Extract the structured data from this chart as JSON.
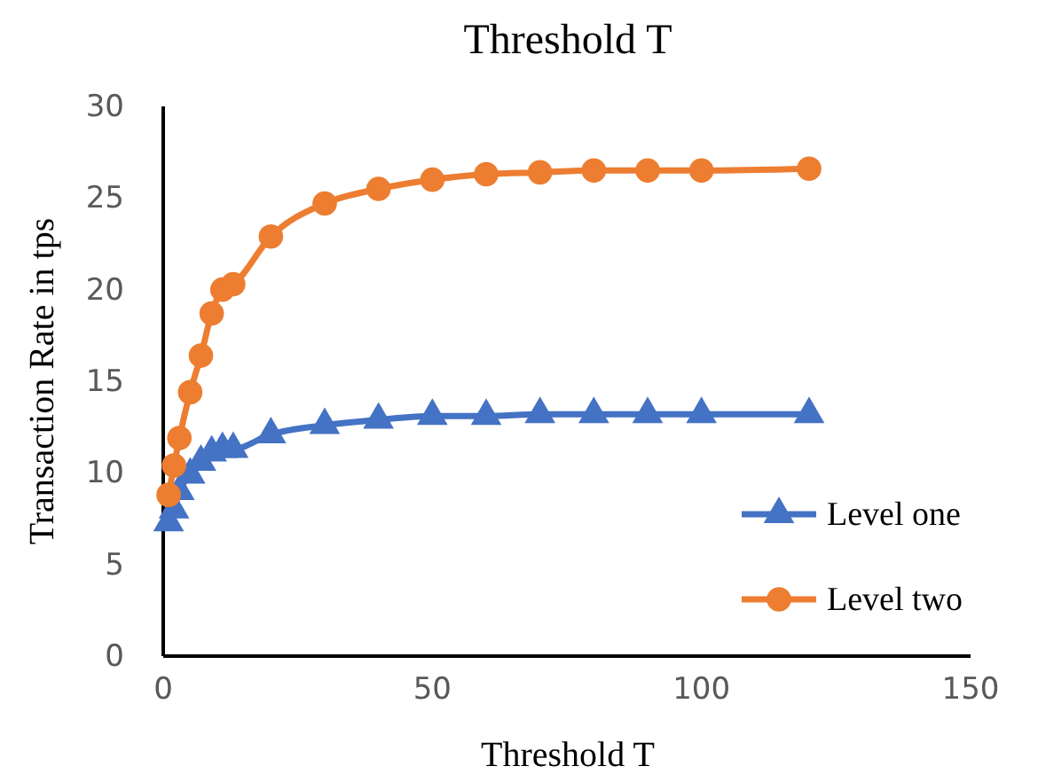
{
  "chart_data": {
    "type": "line",
    "title": "Threshold T",
    "xlabel": "Threshold T",
    "ylabel": "Transaction Rate in tps",
    "xlim": [
      0,
      150
    ],
    "xticks": [
      0,
      50,
      100,
      150
    ],
    "ylim": [
      0,
      30
    ],
    "yticks": [
      0,
      5,
      10,
      15,
      20,
      25,
      30
    ],
    "grid": false,
    "legend": "right",
    "line_style": "solid",
    "series": [
      {
        "name": "Level one",
        "color": "#4472c4",
        "marker": "triangle",
        "x": [
          1,
          2,
          3,
          5,
          7,
          9,
          11,
          13,
          20,
          30,
          40,
          50,
          60,
          70,
          80,
          90,
          100,
          120
        ],
        "values": [
          7.3,
          8.0,
          9.0,
          9.9,
          10.6,
          11.1,
          11.3,
          11.3,
          12.1,
          12.6,
          12.9,
          13.1,
          13.1,
          13.2,
          13.2,
          13.2,
          13.2,
          13.2
        ]
      },
      {
        "name": "Level two",
        "color": "#ed7d31",
        "marker": "circle",
        "x": [
          1,
          2,
          3,
          5,
          7,
          9,
          11,
          13,
          20,
          30,
          40,
          50,
          60,
          70,
          80,
          90,
          100,
          120
        ],
        "values": [
          8.8,
          10.4,
          11.9,
          14.4,
          16.4,
          18.7,
          20.0,
          20.3,
          22.9,
          24.7,
          25.5,
          26.0,
          26.3,
          26.4,
          26.5,
          26.5,
          26.5,
          26.6
        ]
      }
    ]
  }
}
